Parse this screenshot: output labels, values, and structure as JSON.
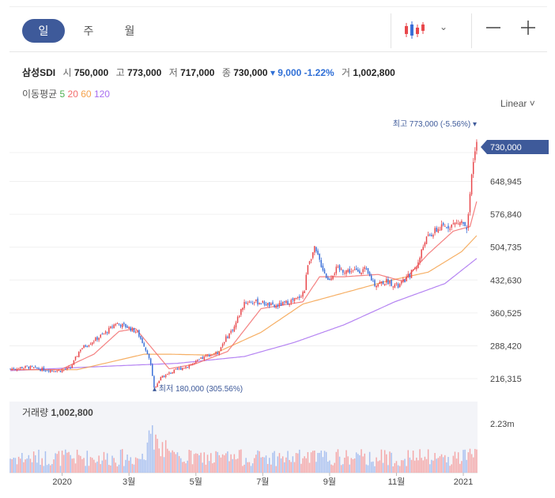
{
  "period_tabs": [
    {
      "label": "일",
      "active": true
    },
    {
      "label": "주",
      "active": false
    },
    {
      "label": "월",
      "active": false
    }
  ],
  "info": {
    "name": "삼성SDI",
    "open_label": "시",
    "open": "750,000",
    "high_label": "고",
    "high": "773,000",
    "low_label": "저",
    "low": "717,000",
    "close_label": "종",
    "close": "730,000",
    "change": "▾ 9,000 -1.22%",
    "volume_label": "거",
    "volume": "1,002,800"
  },
  "ma": {
    "label": "이동평균",
    "p5": "5",
    "p20": "20",
    "p60": "60",
    "p120": "120"
  },
  "colors": {
    "accent": "#3e5a9a",
    "up": "#e8474b",
    "down": "#3a6fd8",
    "ma5": "#4caf50",
    "ma20": "#f26b6b",
    "ma60": "#f5a14a",
    "ma120": "#a86ef0",
    "label_bg": "#3e5a9a"
  },
  "scale_label": "Linear ˅",
  "volume_title": "거래량",
  "volume_value": "1,002,800",
  "chart_data": {
    "type": "candlestick",
    "title": "삼성SDI",
    "y_ticks": [
      216315,
      288420,
      360525,
      432630,
      504735,
      576840,
      648945
    ],
    "y_tick_labels": [
      "216,315",
      "288,420",
      "360,525",
      "432,630",
      "504,735",
      "576,840",
      "648,945"
    ],
    "x_tick_labels": [
      "2020",
      "3월",
      "5월",
      "7월",
      "9월",
      "11월",
      "2021"
    ],
    "x_tick_index": [
      31,
      71,
      111,
      151,
      191,
      231,
      271
    ],
    "num_days": 280,
    "last_price": "730,000",
    "high_annotation": "최고 773,000 (-5.56%) ▾",
    "low_annotation": "▴ 최저 180,000 (305.56%)",
    "volume_axis_label": "2.23m",
    "close_anchors": [
      [
        0,
        238000
      ],
      [
        10,
        242000
      ],
      [
        20,
        236000
      ],
      [
        30,
        234000
      ],
      [
        36,
        240000
      ],
      [
        42,
        282000
      ],
      [
        50,
        300000
      ],
      [
        58,
        320000
      ],
      [
        63,
        338000
      ],
      [
        70,
        330000
      ],
      [
        76,
        318000
      ],
      [
        80,
        290000
      ],
      [
        84,
        250000
      ],
      [
        86,
        196000
      ],
      [
        90,
        218000
      ],
      [
        96,
        230000
      ],
      [
        104,
        242000
      ],
      [
        110,
        250000
      ],
      [
        118,
        268000
      ],
      [
        124,
        272000
      ],
      [
        128,
        300000
      ],
      [
        134,
        330000
      ],
      [
        140,
        385000
      ],
      [
        150,
        384000
      ],
      [
        158,
        374000
      ],
      [
        166,
        384000
      ],
      [
        172,
        392000
      ],
      [
        176,
        410000
      ],
      [
        178,
        470000
      ],
      [
        182,
        500000
      ],
      [
        185,
        475000
      ],
      [
        190,
        432000
      ],
      [
        195,
        456000
      ],
      [
        205,
        452000
      ],
      [
        212,
        455000
      ],
      [
        218,
        424000
      ],
      [
        226,
        430000
      ],
      [
        232,
        418000
      ],
      [
        238,
        440000
      ],
      [
        244,
        470000
      ],
      [
        248,
        520000
      ],
      [
        256,
        545000
      ],
      [
        262,
        552000
      ],
      [
        270,
        560000
      ],
      [
        273,
        550000
      ],
      [
        275,
        620000
      ],
      [
        277,
        690000
      ],
      [
        279,
        730000
      ]
    ],
    "ma_anchors": {
      "ma20": [
        [
          0,
          236000
        ],
        [
          30,
          236000
        ],
        [
          50,
          270000
        ],
        [
          65,
          320000
        ],
        [
          75,
          326000
        ],
        [
          85,
          282000
        ],
        [
          95,
          238000
        ],
        [
          110,
          248000
        ],
        [
          130,
          276000
        ],
        [
          150,
          370000
        ],
        [
          175,
          385000
        ],
        [
          185,
          440000
        ],
        [
          200,
          440000
        ],
        [
          220,
          445000
        ],
        [
          235,
          430000
        ],
        [
          250,
          490000
        ],
        [
          265,
          540000
        ],
        [
          275,
          550000
        ],
        [
          279,
          605000
        ]
      ],
      "ma60": [
        [
          0,
          236000
        ],
        [
          40,
          236000
        ],
        [
          80,
          270000
        ],
        [
          95,
          270000
        ],
        [
          120,
          268000
        ],
        [
          150,
          318000
        ],
        [
          175,
          380000
        ],
        [
          200,
          405000
        ],
        [
          225,
          430000
        ],
        [
          250,
          450000
        ],
        [
          270,
          495000
        ],
        [
          279,
          530000
        ]
      ],
      "ma120": [
        [
          0,
          234000
        ],
        [
          60,
          244000
        ],
        [
          100,
          250000
        ],
        [
          140,
          265000
        ],
        [
          170,
          296000
        ],
        [
          200,
          335000
        ],
        [
          230,
          385000
        ],
        [
          260,
          425000
        ],
        [
          279,
          480000
        ]
      ]
    }
  }
}
